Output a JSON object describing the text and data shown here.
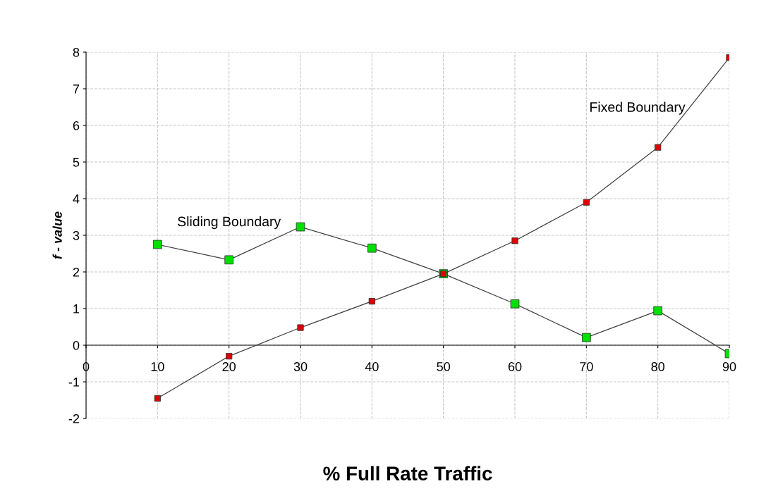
{
  "chart_data": {
    "type": "line",
    "xlabel": "% Full Rate Traffic",
    "ylabel": "f - value",
    "x": [
      10,
      20,
      30,
      40,
      50,
      60,
      70,
      80,
      90
    ],
    "series": [
      {
        "name": "Sliding Boundary",
        "color": "#00e000",
        "values": [
          2.75,
          2.33,
          3.23,
          2.65,
          1.95,
          1.13,
          0.21,
          0.94,
          -0.23
        ]
      },
      {
        "name": "Fixed Boundary",
        "color": "#e00000",
        "values": [
          -1.45,
          -0.3,
          0.48,
          1.2,
          1.95,
          2.85,
          3.9,
          5.4,
          7.85
        ]
      }
    ],
    "xlim": [
      0,
      90
    ],
    "xticks": [
      0,
      10,
      20,
      30,
      40,
      50,
      60,
      70,
      80,
      90
    ],
    "ylim": [
      -2,
      8
    ],
    "yticks": [
      -2,
      -1,
      0,
      1,
      2,
      3,
      4,
      5,
      6,
      7,
      8
    ],
    "grid": true,
    "marker": "square",
    "line_style": "solid",
    "legend": false
  }
}
